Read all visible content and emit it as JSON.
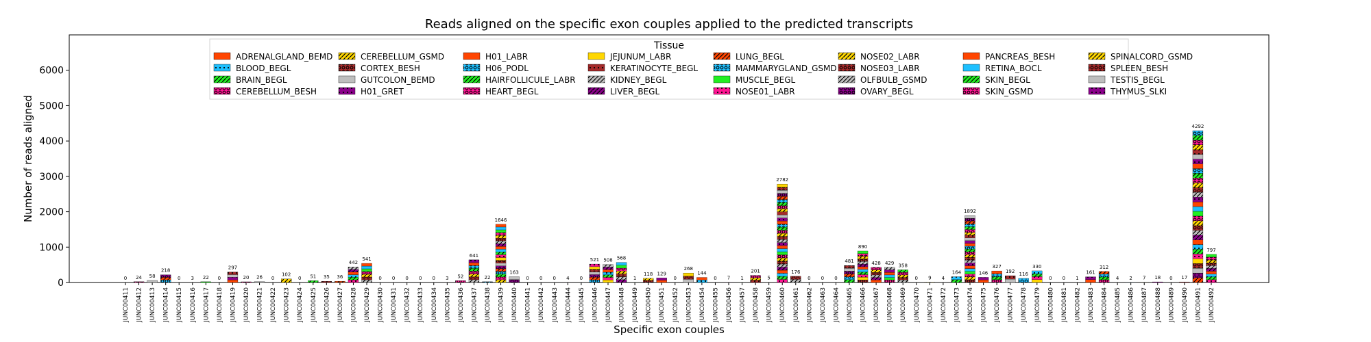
{
  "chart_data": {
    "type": "bar",
    "stacked": true,
    "title": "Reads aligned on the specific exon couples applied to the predicted transcripts",
    "xlabel": "Specific exon couples",
    "ylabel": "Number of reads aligned",
    "ylim": [
      0,
      7000
    ],
    "yticks": [
      0,
      1000,
      2000,
      3000,
      4000,
      5000,
      6000
    ],
    "grid": false,
    "legend": {
      "title": "Tissue",
      "placement": "top-center",
      "columns": 8,
      "entries": [
        {
          "label": "ADRENALGLAND_BEMD",
          "color": "#ff4500",
          "hatch": "none"
        },
        {
          "label": "BLOOD_BEGL",
          "color": "#1ec0ff",
          "hatch": "dot"
        },
        {
          "label": "BRAIN_BEGL",
          "color": "#22ee22",
          "hatch": "slash"
        },
        {
          "label": "CEREBELLUM_BESH",
          "color": "#ff1493",
          "hatch": "circle"
        },
        {
          "label": "CEREBELLUM_GSMD",
          "color": "#ffd700",
          "hatch": "slash"
        },
        {
          "label": "CORTEX_BESH",
          "color": "#a52a2a",
          "hatch": "circle"
        },
        {
          "label": "GUTCOLON_BEMD",
          "color": "#bebebe",
          "hatch": "none"
        },
        {
          "label": "H01_GRET",
          "color": "#8b008b",
          "hatch": "dot"
        },
        {
          "label": "H01_LABR",
          "color": "#ff4500",
          "hatch": "none"
        },
        {
          "label": "H06_PODL",
          "color": "#1ec0ff",
          "hatch": "circle"
        },
        {
          "label": "HAIRFOLLICULE_LABR",
          "color": "#22ee22",
          "hatch": "slash"
        },
        {
          "label": "HEART_BEGL",
          "color": "#ff1493",
          "hatch": "circle"
        },
        {
          "label": "JEJUNUM_LABR",
          "color": "#ffd700",
          "hatch": "none"
        },
        {
          "label": "KERATINOCYTE_BEGL",
          "color": "#a52a2a",
          "hatch": "dot"
        },
        {
          "label": "KIDNEY_BEGL",
          "color": "#bebebe",
          "hatch": "slash"
        },
        {
          "label": "LIVER_BEGL",
          "color": "#8b008b",
          "hatch": "slash"
        },
        {
          "label": "LUNG_BEGL",
          "color": "#ff4500",
          "hatch": "slash"
        },
        {
          "label": "MAMMARYGLAND_GSMD",
          "color": "#1ec0ff",
          "hatch": "circle"
        },
        {
          "label": "MUSCLE_BEGL",
          "color": "#22ee22",
          "hatch": "none"
        },
        {
          "label": "NOSE01_LABR",
          "color": "#ff1493",
          "hatch": "dot"
        },
        {
          "label": "NOSE02_LABR",
          "color": "#ffd700",
          "hatch": "slash"
        },
        {
          "label": "NOSE03_LABR",
          "color": "#a52a2a",
          "hatch": "circle"
        },
        {
          "label": "OLFBULB_GSMD",
          "color": "#bebebe",
          "hatch": "slash"
        },
        {
          "label": "OVARY_BEGL",
          "color": "#8b008b",
          "hatch": "circle"
        },
        {
          "label": "PANCREAS_BESH",
          "color": "#ff4500",
          "hatch": "none"
        },
        {
          "label": "RETINA_BOCL",
          "color": "#1ec0ff",
          "hatch": "none"
        },
        {
          "label": "SKIN_BEGL",
          "color": "#22ee22",
          "hatch": "slash"
        },
        {
          "label": "SKIN_GSMD",
          "color": "#ff1493",
          "hatch": "circle"
        },
        {
          "label": "SPINALCORD_GSMD",
          "color": "#ffd700",
          "hatch": "slash"
        },
        {
          "label": "SPLEEN_BESH",
          "color": "#a52a2a",
          "hatch": "circle"
        },
        {
          "label": "TESTIS_BEGL",
          "color": "#bebebe",
          "hatch": "none"
        },
        {
          "label": "THYMUS_SLKI",
          "color": "#8b008b",
          "hatch": "dot"
        }
      ]
    },
    "categories": [
      "JUNC00411",
      "JUNC00412",
      "JUNC00413",
      "JUNC00414",
      "JUNC00415",
      "JUNC00416",
      "JUNC00417",
      "JUNC00418",
      "JUNC00419",
      "JUNC00420",
      "JUNC00421",
      "JUNC00422",
      "JUNC00423",
      "JUNC00424",
      "JUNC00425",
      "JUNC00426",
      "JUNC00427",
      "JUNC00428",
      "JUNC00429",
      "JUNC00430",
      "JUNC00431",
      "JUNC00432",
      "JUNC00433",
      "JUNC00434",
      "JUNC00435",
      "JUNC00436",
      "JUNC00437",
      "JUNC00438",
      "JUNC00439",
      "JUNC00440",
      "JUNC00441",
      "JUNC00442",
      "JUNC00443",
      "JUNC00444",
      "JUNC00445",
      "JUNC00446",
      "JUNC00447",
      "JUNC00448",
      "JUNC00449",
      "JUNC00450",
      "JUNC00451",
      "JUNC00452",
      "JUNC00453",
      "JUNC00454",
      "JUNC00455",
      "JUNC00456",
      "JUNC00457",
      "JUNC00458",
      "JUNC00459",
      "JUNC00460",
      "JUNC00461",
      "JUNC00462",
      "JUNC00463",
      "JUNC00464",
      "JUNC00465",
      "JUNC00466",
      "JUNC00467",
      "JUNC00468",
      "JUNC00469",
      "JUNC00470",
      "JUNC00471",
      "JUNC00472",
      "JUNC00473",
      "JUNC00474",
      "JUNC00475",
      "JUNC00476",
      "JUNC00477",
      "JUNC00478",
      "JUNC00479",
      "JUNC00480",
      "JUNC00481",
      "JUNC00482",
      "JUNC00483",
      "JUNC00484",
      "JUNC00485",
      "JUNC00486",
      "JUNC00487",
      "JUNC00488",
      "JUNC00489",
      "JUNC00490",
      "JUNC00491",
      "JUNC00492"
    ],
    "totals": [
      0,
      24,
      58,
      218,
      0,
      3,
      22,
      0,
      297,
      20,
      26,
      0,
      102,
      0,
      51,
      35,
      36,
      442,
      541,
      0,
      0,
      0,
      0,
      0,
      3,
      52,
      641,
      22,
      1646,
      163,
      0,
      0,
      0,
      4,
      0,
      521,
      508,
      568,
      1,
      118,
      129,
      0,
      268,
      144,
      0,
      7,
      1,
      201,
      5,
      2782,
      176,
      0,
      0,
      0,
      481,
      890,
      428,
      429,
      358,
      0,
      9,
      4,
      164,
      1892,
      146,
      327,
      192,
      116,
      330,
      0,
      0,
      1,
      161,
      312,
      4,
      2,
      7,
      18,
      0,
      17,
      4292,
      797
    ]
  }
}
